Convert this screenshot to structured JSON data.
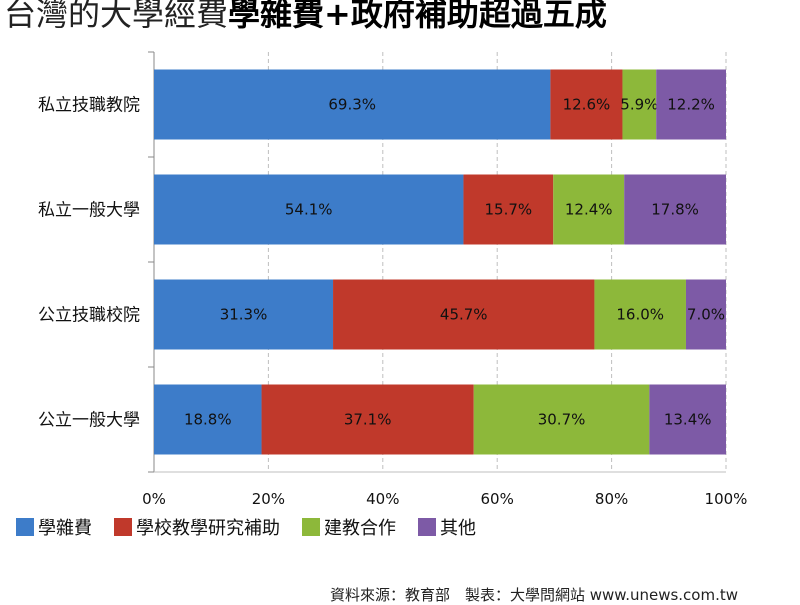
{
  "title": {
    "part1": "台灣的大學經費",
    "part2": "學雜費+政府補助超過五成"
  },
  "source": "資料來源：教育部　製表：大學問網站 www.unews.com.tw",
  "colors": {
    "series": [
      "#3d7cc9",
      "#c0392b",
      "#8db83a",
      "#7d5aa6"
    ],
    "grid": "#bfbfbf",
    "axis": "#888888"
  },
  "chart_data": {
    "type": "bar",
    "orientation": "horizontal",
    "stacked": "percent",
    "categories": [
      "私立技職教院",
      "私立一般大學",
      "公立技職校院",
      "公立一般大學"
    ],
    "series": [
      {
        "name": "學雜費",
        "values": [
          69.3,
          54.1,
          31.3,
          18.8
        ],
        "labels": [
          "69.3%",
          "54.1%",
          "31.3%",
          "18.8%"
        ]
      },
      {
        "name": "學校教學研究補助",
        "values": [
          12.6,
          15.7,
          45.7,
          37.1
        ],
        "labels": [
          "12.6%",
          "15.7%",
          "45.7%",
          "37.1%"
        ]
      },
      {
        "name": "建教合作",
        "values": [
          5.9,
          12.4,
          16.0,
          30.7
        ],
        "labels": [
          "5.9%",
          "12.4%",
          "16.0%",
          "30.7%"
        ]
      },
      {
        "name": "其他",
        "values": [
          12.2,
          17.8,
          7.0,
          13.4
        ],
        "labels": [
          "12.2%",
          "17.8%",
          "7.0%",
          "13.4%"
        ]
      }
    ],
    "xlim": [
      0,
      100
    ],
    "xticks": [
      "0%",
      "20%",
      "40%",
      "60%",
      "80%",
      "100%"
    ],
    "grid": true,
    "legend_position": "bottom-left"
  }
}
